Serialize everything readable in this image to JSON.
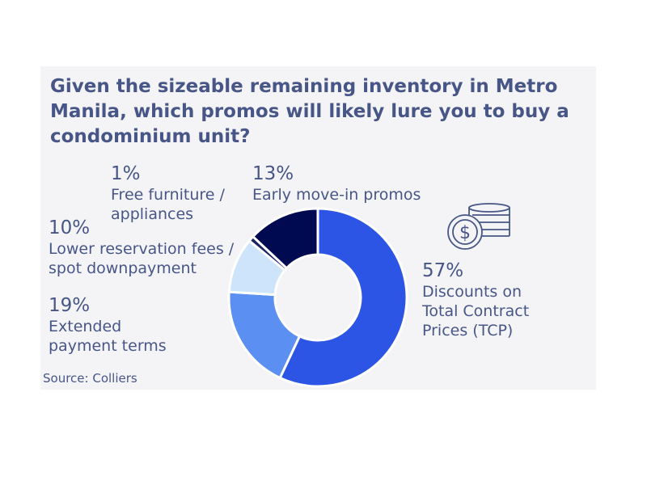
{
  "chart_data": {
    "type": "pie",
    "donut": true,
    "title": "Given the sizeable remaining inventory in Metro Manila, which promos will likely lure you to buy a condominium unit?",
    "slices": [
      {
        "label": "Discounts on Total Contract Prices (TCP)",
        "value": 57,
        "display": "57%",
        "color": "#2c55e6"
      },
      {
        "label": "Extended payment terms",
        "value": 19,
        "display": "19%",
        "color": "#5b8ff2"
      },
      {
        "label": "Lower reservation fees / spot downpayment",
        "value": 10,
        "display": "10%",
        "color": "#cde4fb"
      },
      {
        "label": "Free furniture / appliances",
        "value": 1,
        "display": "1%",
        "color": "#1a2566"
      },
      {
        "label": "Early move-in promos",
        "value": 13,
        "display": "13%",
        "color": "#000a50"
      }
    ],
    "source": "Source: Colliers"
  },
  "icon": "coins-dollar-icon"
}
